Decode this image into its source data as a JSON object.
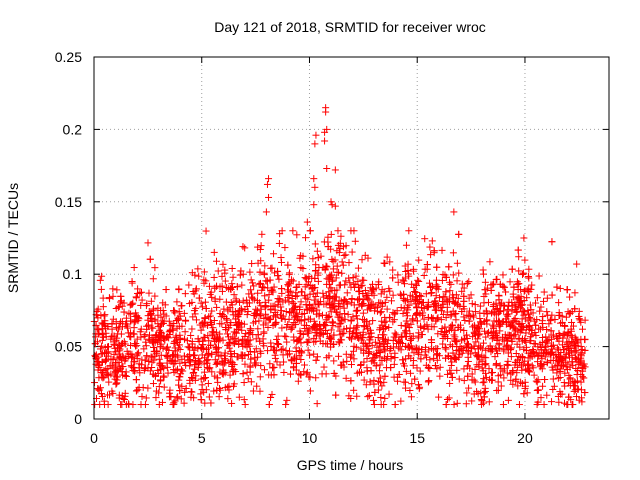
{
  "chart_data": {
    "type": "scatter",
    "title": "Day 121 of 2018, SRMTID for receiver wroc",
    "xlabel": "GPS time / hours",
    "ylabel": "SRMTID / TECUs",
    "xlim": [
      0,
      23.9
    ],
    "ylim": [
      0,
      0.25
    ],
    "xticks": [
      0,
      5,
      10,
      15,
      20
    ],
    "xtick_labels": [
      "0",
      "5",
      "10",
      "15",
      "20"
    ],
    "yticks": [
      0,
      0.05,
      0.1,
      0.15,
      0.2,
      0.25
    ],
    "ytick_labels": [
      "0",
      "0.05",
      "0.1",
      "0.15",
      "0.2",
      "0.25"
    ],
    "grid": true,
    "marker": "plus",
    "color": "#ff0000",
    "series": [
      {
        "name": "SRMTID",
        "x_range": [
          0,
          22.8
        ],
        "description_trend": [
          [
            0,
            0.048
          ],
          [
            1,
            0.045
          ],
          [
            2,
            0.052
          ],
          [
            3,
            0.05
          ],
          [
            4,
            0.048
          ],
          [
            5,
            0.055
          ],
          [
            6,
            0.057
          ],
          [
            7,
            0.06
          ],
          [
            8,
            0.07
          ],
          [
            9,
            0.068
          ],
          [
            10,
            0.072
          ],
          [
            11,
            0.08
          ],
          [
            12,
            0.07
          ],
          [
            13,
            0.058
          ],
          [
            14,
            0.062
          ],
          [
            15,
            0.068
          ],
          [
            16,
            0.068
          ],
          [
            17,
            0.058
          ],
          [
            18,
            0.055
          ],
          [
            19,
            0.058
          ],
          [
            20,
            0.06
          ],
          [
            21,
            0.05
          ],
          [
            22,
            0.045
          ],
          [
            22.8,
            0.038
          ]
        ],
        "notable_points": [
          {
            "x": 10.75,
            "y": 0.215
          },
          {
            "x": 10.75,
            "y": 0.212
          },
          {
            "x": 10.8,
            "y": 0.2
          },
          {
            "x": 10.7,
            "y": 0.198
          },
          {
            "x": 10.7,
            "y": 0.192
          },
          {
            "x": 10.3,
            "y": 0.196
          },
          {
            "x": 10.25,
            "y": 0.19
          },
          {
            "x": 10.8,
            "y": 0.173
          },
          {
            "x": 11.2,
            "y": 0.172
          },
          {
            "x": 10.2,
            "y": 0.166
          },
          {
            "x": 10.25,
            "y": 0.16
          },
          {
            "x": 8.1,
            "y": 0.166
          },
          {
            "x": 8.05,
            "y": 0.162
          },
          {
            "x": 8.1,
            "y": 0.153
          },
          {
            "x": 8.0,
            "y": 0.143
          },
          {
            "x": 11.0,
            "y": 0.15
          },
          {
            "x": 11.05,
            "y": 0.148
          },
          {
            "x": 10.2,
            "y": 0.148
          },
          {
            "x": 11.2,
            "y": 0.147
          },
          {
            "x": 16.7,
            "y": 0.143
          },
          {
            "x": 9.9,
            "y": 0.136
          },
          {
            "x": 19.95,
            "y": 0.125
          },
          {
            "x": 15.7,
            "y": 0.123
          },
          {
            "x": 14.5,
            "y": 0.12
          },
          {
            "x": 22.4,
            "y": 0.107
          },
          {
            "x": 1.8,
            "y": 0.08
          },
          {
            "x": 4.5,
            "y": 0.015
          },
          {
            "x": 3.0,
            "y": 0.018
          },
          {
            "x": 13.2,
            "y": 0.02
          },
          {
            "x": 17.3,
            "y": 0.018
          }
        ]
      }
    ]
  }
}
